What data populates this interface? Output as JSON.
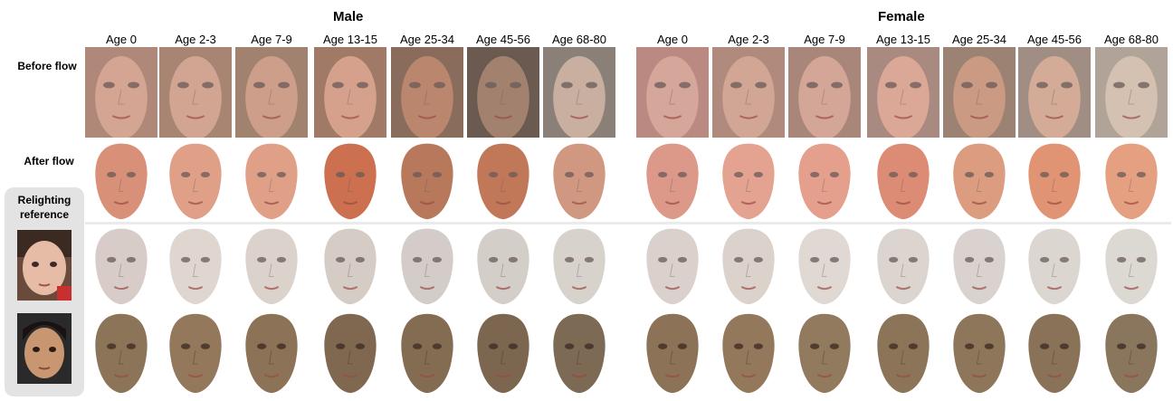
{
  "groups": {
    "male": "Male",
    "female": "Female"
  },
  "age_labels": [
    "Age 0",
    "Age 2-3",
    "Age 7-9",
    "Age 13-15",
    "Age 25-34",
    "Age 45-56",
    "Age 68-80"
  ],
  "rows": {
    "before_flow": "Before flow",
    "after_flow": "After flow",
    "relighting_reference": "Relighting\nreference"
  },
  "colors": {
    "before_bg_male": [
      "#b0887a",
      "#a88472",
      "#a0826e",
      "#a07a66",
      "#8a6c5c",
      "#6a5a50",
      "#8a8078"
    ],
    "before_bg_female": [
      "#ba8a82",
      "#b08a7c",
      "#a8867a",
      "#a88a80",
      "#9c8272",
      "#a08e84",
      "#b0a498"
    ],
    "before_face_male": [
      "#d8a896",
      "#d6a896",
      "#d2a28e",
      "#dca590",
      "#c08a70",
      "#a88672",
      "#cfb4a4"
    ],
    "before_face_female": [
      "#d8a89c",
      "#d6a898",
      "#d8aa9a",
      "#e0aa98",
      "#d09c84",
      "#d8ae98",
      "#d8c4b4"
    ],
    "after_male": [
      "#d89078",
      "#e0a088",
      "#e0a088",
      "#cc7050",
      "#b8785c",
      "#c07858",
      "#d09880"
    ],
    "after_female": [
      "#dc9888",
      "#e4a290",
      "#e4a08c",
      "#dc8c74",
      "#dc9c80",
      "#e09474",
      "#e4a080"
    ],
    "relight1_male": [
      "#d8ccc8",
      "#e0d6d0",
      "#dcd2cc",
      "#d6ccc6",
      "#d4ccc8",
      "#d4cec8",
      "#d8d2cc"
    ],
    "relight1_female": [
      "#dad0cc",
      "#dcd2cc",
      "#e0d8d2",
      "#dcd4ce",
      "#dad2ce",
      "#dcd6d0",
      "#dcd8d2"
    ],
    "relight2_male": [
      "#8c7458",
      "#94785c",
      "#8c7256",
      "#806850",
      "#846c52",
      "#7c6650",
      "#7c6a54"
    ],
    "relight2_female": [
      "#8c7256",
      "#94785c",
      "#927a5e",
      "#8c7458",
      "#8e765a",
      "#8a7258",
      "#8a765c"
    ],
    "reference_panel": "#e3e3e3"
  }
}
